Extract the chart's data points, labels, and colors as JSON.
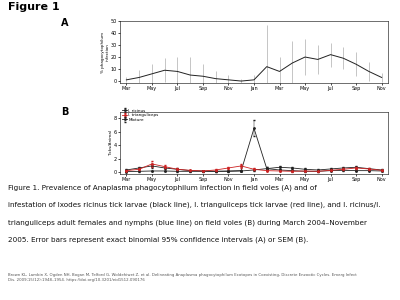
{
  "title": "Figure 1",
  "panel_A_label": "A",
  "panel_B_label": "B",
  "ylabel_A": "% phagocytophilum\ninfection",
  "ylabel_B": "Ticks/Animal",
  "legend_B": [
    "I. ricinus",
    "I. trianguliceps",
    "Mixture"
  ],
  "caption_line1": "Figure 1. Prevalence of Anaplasma phagocytophilum infection in field voles (A) and of",
  "caption_line2": "infestation of Ixodes ricinus tick larvae (black line), I. trianguliceps tick larvae (red line), and I. ricinus/I.",
  "caption_line3": "trianguliceps adult females and nymphs (blue line) on field voles (B) during March 2004–November",
  "caption_line4": "2005. Error bars represent exact binomial 95% confidence intervals (A) or SEM (B).",
  "citation": "Brown KL, Lambin X, Ogden NH, Bogan M, Telford G, Woldehiwet Z, et al. Delineating Anaplasma phagocytophilum Ecotopes in Coexisting, Discrete Enzootic Cycles. Emerg Infect\nDis. 2009;15(12):1948–1954. https://doi.org/10.3201/eid1512.090176",
  "A_x": [
    0,
    1,
    2,
    3,
    4,
    5,
    6,
    7,
    8,
    9,
    10,
    11,
    12,
    13,
    14,
    15,
    16,
    17,
    18,
    19,
    20
  ],
  "A_y": [
    1,
    3,
    6,
    9,
    8,
    5,
    4,
    2,
    1,
    0,
    1,
    12,
    8,
    15,
    20,
    18,
    22,
    19,
    14,
    8,
    3
  ],
  "A_yerr": [
    2,
    6,
    8,
    10,
    12,
    15,
    10,
    6,
    4,
    2,
    4,
    35,
    12,
    18,
    15,
    12,
    10,
    9,
    10,
    8,
    4
  ],
  "B_x": [
    0,
    1,
    2,
    3,
    4,
    5,
    6,
    7,
    8,
    9,
    10,
    11,
    12,
    13,
    14,
    15,
    16,
    17,
    18,
    19,
    20
  ],
  "B_ricinus_y": [
    0.3,
    0.6,
    0.9,
    0.6,
    0.4,
    0.2,
    0.15,
    0.1,
    0.1,
    0.15,
    0.3,
    0.5,
    0.7,
    0.6,
    0.4,
    0.3,
    0.45,
    0.6,
    0.7,
    0.5,
    0.3
  ],
  "B_trianguliceps_y": [
    0.2,
    0.4,
    1.2,
    0.8,
    0.4,
    0.25,
    0.15,
    0.3,
    0.6,
    0.9,
    0.4,
    0.2,
    0.15,
    0.1,
    0.15,
    0.1,
    0.25,
    0.4,
    0.6,
    0.45,
    0.25
  ],
  "B_mixture_y": [
    0.05,
    0.1,
    0.15,
    0.15,
    0.1,
    0.1,
    0.1,
    0.1,
    0.15,
    0.2,
    6.5,
    0.5,
    0.3,
    0.2,
    0.1,
    0.1,
    0.2,
    0.25,
    0.2,
    0.2,
    0.15
  ],
  "B_ricinus_err": [
    0.1,
    0.2,
    0.3,
    0.2,
    0.15,
    0.1,
    0.05,
    0.05,
    0.05,
    0.05,
    0.1,
    0.2,
    0.2,
    0.2,
    0.15,
    0.1,
    0.15,
    0.2,
    0.2,
    0.15,
    0.1
  ],
  "B_trianguliceps_err": [
    0.05,
    0.15,
    0.4,
    0.25,
    0.15,
    0.1,
    0.05,
    0.1,
    0.2,
    0.3,
    0.15,
    0.1,
    0.05,
    0.05,
    0.05,
    0.05,
    0.1,
    0.15,
    0.2,
    0.15,
    0.1
  ],
  "B_mixture_err": [
    0.02,
    0.05,
    0.05,
    0.05,
    0.05,
    0.05,
    0.05,
    0.05,
    0.05,
    0.1,
    1.2,
    0.2,
    0.1,
    0.05,
    0.05,
    0.05,
    0.05,
    0.05,
    0.05,
    0.05,
    0.05
  ],
  "color_black": "#222222",
  "color_red": "#cc2222",
  "color_blue": "#2255cc",
  "bg_color": "#ffffff",
  "x_tick_labels": [
    "Mar",
    "May",
    "Jul",
    "Sep",
    "Nov",
    "Jan",
    "Mar",
    "May",
    "Jul",
    "Sep",
    "Nov"
  ],
  "x_tick_pos": [
    0,
    2,
    4,
    6,
    8,
    10,
    12,
    14,
    16,
    18,
    20
  ]
}
